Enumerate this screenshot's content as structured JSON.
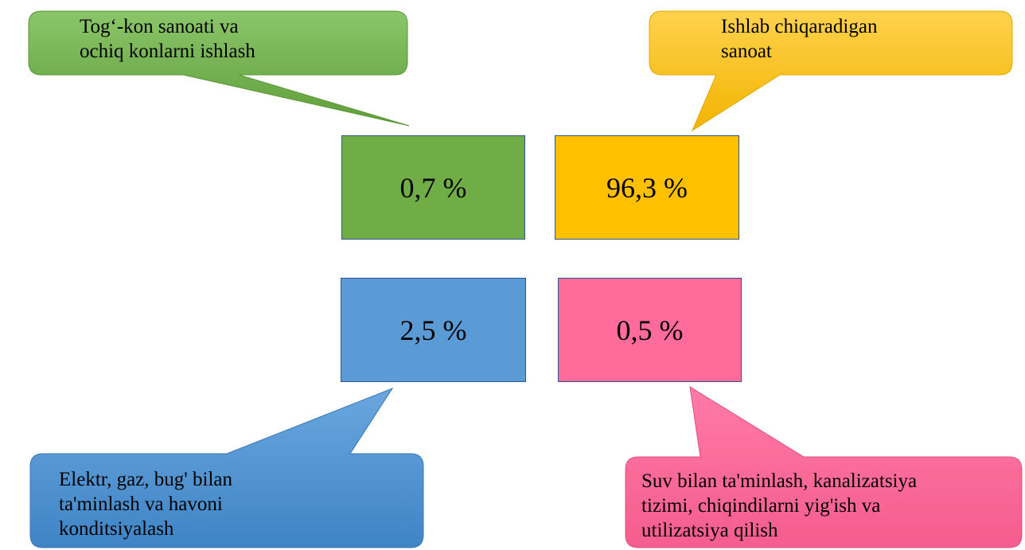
{
  "colors": {
    "mining": "#70ad47",
    "manufacturing": "#ffc000",
    "energy": "#5b9bd5",
    "water": "#ff6b9a"
  },
  "sectors": {
    "mining": {
      "value": "0,7 %",
      "label_lines": [
        "Tog‘-kon sanoati va",
        "ochiq konlarni ishlash"
      ]
    },
    "manufacturing": {
      "value": "96,3 %",
      "label_lines": [
        "Ishlab chiqaradigan",
        "sanoat"
      ]
    },
    "energy": {
      "value": "2,5 %",
      "label_lines": [
        "Elektr, gaz, bug' bilan",
        "ta'minlash va havoni",
        "konditsiyalash"
      ]
    },
    "water": {
      "value": "0,5 %",
      "label_lines": [
        "Suv bilan ta'minlash, kanalizatsiya",
        "tizimi, chiqindilarni yig'ish va",
        "utilizatsiya qilish"
      ]
    }
  }
}
